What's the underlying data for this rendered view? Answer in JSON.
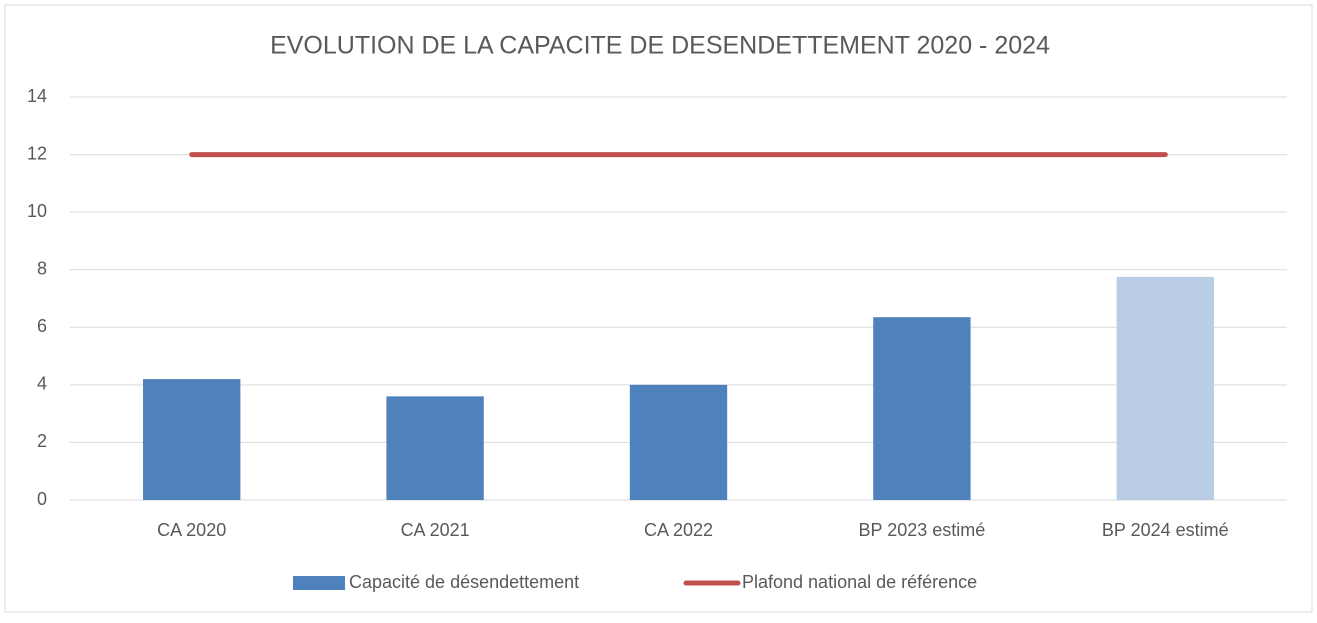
{
  "chart_data": {
    "type": "bar",
    "title": "EVOLUTION DE LA CAPACITE DE DESENDETTEMENT  2020 - 2024",
    "categories": [
      "CA 2020",
      "CA 2021",
      "CA 2022",
      "BP 2023 estimé",
      "BP 2024 estimé"
    ],
    "series": [
      {
        "name": "Capacité de désendettement",
        "type": "bar",
        "color": "#4f81bd",
        "colors": [
          "#4f81bd",
          "#4f81bd",
          "#4f81bd",
          "#4f81bd",
          "#b9cde5"
        ],
        "values": [
          4.2,
          3.6,
          4.0,
          6.35,
          7.75
        ]
      },
      {
        "name": "Plafond national  de référence",
        "type": "line",
        "color": "#c0504d",
        "values": [
          12,
          12,
          12,
          12,
          12
        ]
      }
    ],
    "ylim": [
      0,
      14
    ],
    "yticks": [
      0,
      2,
      4,
      6,
      8,
      10,
      12,
      14
    ],
    "grid": true,
    "legend": "bottom"
  }
}
